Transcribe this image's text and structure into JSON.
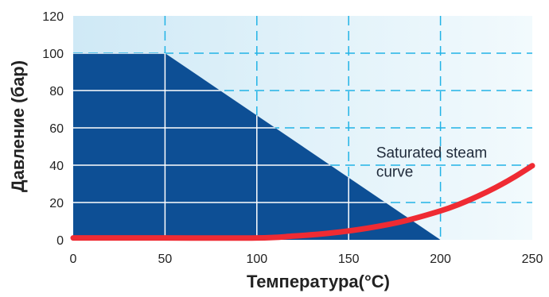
{
  "chart_data": {
    "type": "area",
    "title": "",
    "xlabel": "Температура(°C)",
    "ylabel": "Давление (бар)",
    "xlim": [
      0,
      250
    ],
    "ylim": [
      0,
      120
    ],
    "x_ticks": [
      "0",
      "50",
      "100",
      "150",
      "200",
      "250"
    ],
    "y_ticks": [
      "0",
      "20",
      "40",
      "60",
      "80",
      "100",
      "120"
    ],
    "grid": true,
    "colors": {
      "background": "#e6f3fa",
      "region": "#0d4f95",
      "curve": "#ef2b33",
      "grid": "#22b3e6"
    },
    "series": [
      {
        "type": "area",
        "points": [
          [
            0,
            100
          ],
          [
            50,
            100
          ],
          [
            200,
            0
          ],
          [
            0,
            0
          ]
        ]
      },
      {
        "name": "Saturated steam curve",
        "type": "line",
        "points": [
          [
            0,
            1
          ],
          [
            50,
            1
          ],
          [
            100,
            1
          ],
          [
            120,
            2
          ],
          [
            140,
            3.6
          ],
          [
            160,
            6.2
          ],
          [
            180,
            10
          ],
          [
            200,
            15.5
          ],
          [
            210,
            19
          ],
          [
            220,
            23.2
          ],
          [
            230,
            28
          ],
          [
            240,
            33.5
          ],
          [
            250,
            39.7
          ]
        ]
      }
    ],
    "annotations": [
      {
        "lines": [
          "Saturated steam",
          "curve"
        ],
        "x": 165,
        "y": 44
      }
    ]
  }
}
